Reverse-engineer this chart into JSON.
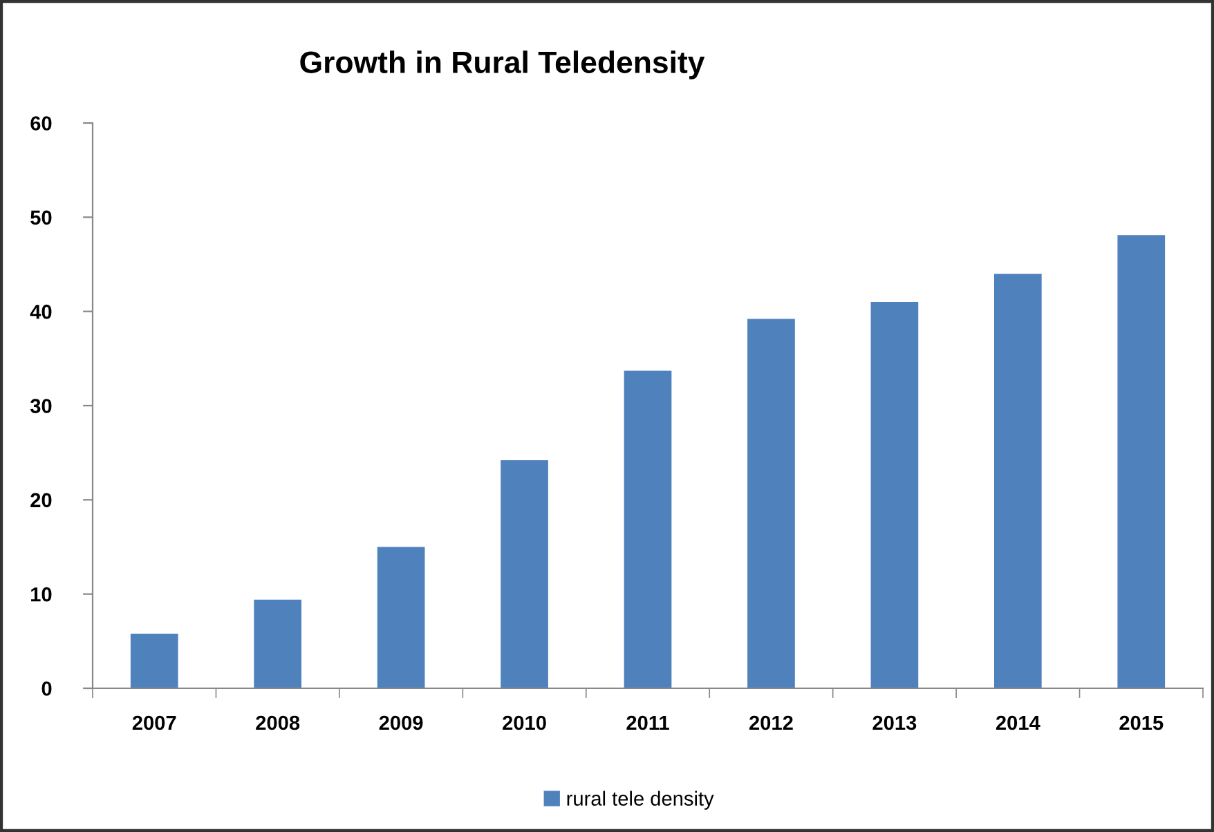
{
  "chart_data": {
    "type": "bar",
    "title": "Growth in Rural Teledensity",
    "categories": [
      "2007",
      "2008",
      "2009",
      "2010",
      "2011",
      "2012",
      "2013",
      "2014",
      "2015"
    ],
    "series": [
      {
        "name": "rural tele density",
        "color": "#4f81bd",
        "values": [
          5.8,
          9.4,
          15.0,
          24.2,
          33.7,
          39.2,
          41.0,
          44.0,
          48.1
        ]
      }
    ],
    "ylim": [
      0,
      60
    ],
    "yticks": [
      0,
      10,
      20,
      30,
      40,
      50,
      60
    ],
    "legend": "bottom"
  }
}
